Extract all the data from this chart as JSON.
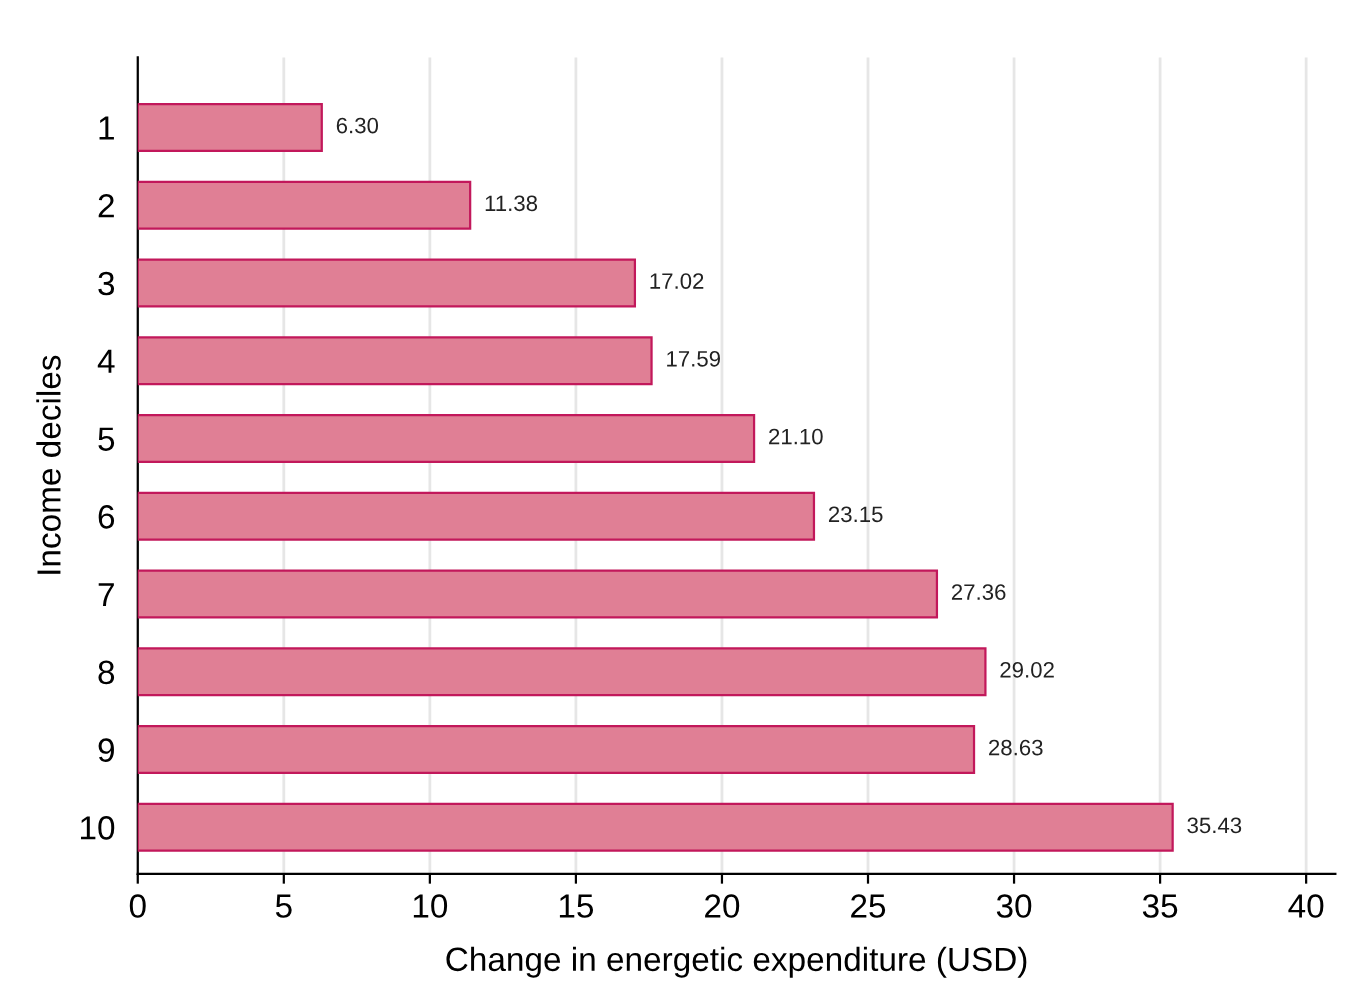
{
  "chart_data": {
    "type": "bar",
    "orientation": "horizontal",
    "categories": [
      "1",
      "2",
      "3",
      "4",
      "5",
      "6",
      "7",
      "8",
      "9",
      "10"
    ],
    "values": [
      6.3,
      11.38,
      17.02,
      17.59,
      21.1,
      23.15,
      27.36,
      29.02,
      28.63,
      35.43
    ],
    "value_labels": [
      "6.30",
      "11.38",
      "17.02",
      "17.59",
      "21.10",
      "23.15",
      "27.36",
      "29.02",
      "28.63",
      "35.43"
    ],
    "color": "#e07f95",
    "xlabel": "Change in energetic expenditure (USD)",
    "ylabel": "Income deciles",
    "xlim": [
      0,
      41
    ],
    "xticks": [
      0,
      5,
      10,
      15,
      20,
      25,
      30,
      35,
      40
    ],
    "grid": "x",
    "legend": false
  }
}
